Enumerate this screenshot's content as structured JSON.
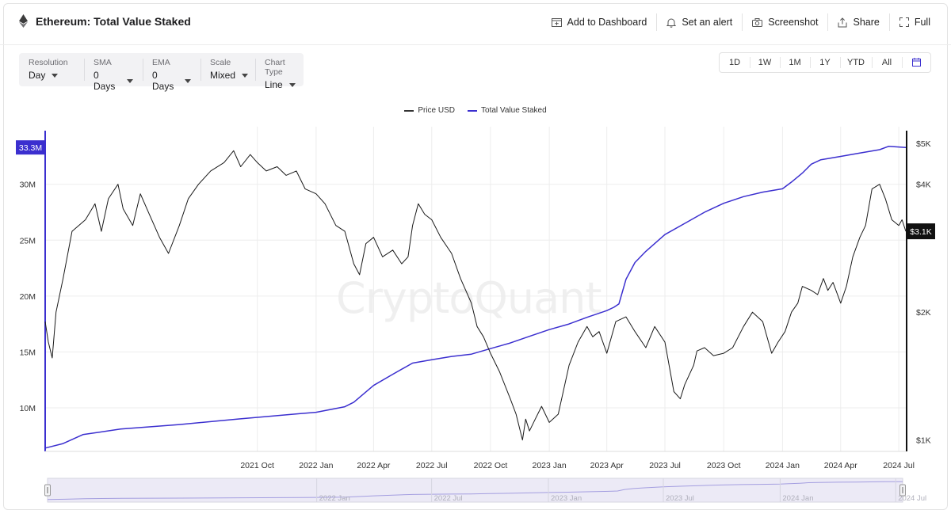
{
  "header": {
    "title": "Ethereum: Total Value Staked",
    "actions": [
      {
        "label": "Add to Dashboard",
        "icon": "dashboard-add-icon"
      },
      {
        "label": "Set an alert",
        "icon": "bell-icon"
      },
      {
        "label": "Screenshot",
        "icon": "camera-icon"
      },
      {
        "label": "Share",
        "icon": "share-icon"
      },
      {
        "label": "Full",
        "icon": "fullscreen-icon"
      }
    ]
  },
  "controls": [
    {
      "label": "Resolution",
      "value": "Day"
    },
    {
      "label": "SMA",
      "value": "0 Days"
    },
    {
      "label": "EMA",
      "value": "0 Days"
    },
    {
      "label": "Scale",
      "value": "Mixed"
    },
    {
      "label": "Chart Type",
      "value": "Line"
    }
  ],
  "ranges": [
    "1D",
    "1W",
    "1M",
    "1Y",
    "YTD",
    "All"
  ],
  "watermark": "CryptoQuant",
  "colors": {
    "accent": "#3b2fcf",
    "price": "#1a1a1a",
    "grid": "#ededed"
  },
  "chart_data": {
    "type": "line",
    "legend_position": "top-center",
    "grid": true,
    "x_range": [
      "2020-11-03",
      "2024-07-12"
    ],
    "x_ticks": [
      {
        "date": "2021-10-01",
        "label": "2021 Oct"
      },
      {
        "date": "2022-01-01",
        "label": "2022 Jan"
      },
      {
        "date": "2022-04-01",
        "label": "2022 Apr"
      },
      {
        "date": "2022-07-01",
        "label": "2022 Jul"
      },
      {
        "date": "2022-10-01",
        "label": "2022 Oct"
      },
      {
        "date": "2023-01-01",
        "label": "2023 Jan"
      },
      {
        "date": "2023-04-01",
        "label": "2023 Apr"
      },
      {
        "date": "2023-07-01",
        "label": "2023 Jul"
      },
      {
        "date": "2023-10-01",
        "label": "2023 Oct"
      },
      {
        "date": "2024-01-01",
        "label": "2024 Jan"
      },
      {
        "date": "2024-04-01",
        "label": "2024 Apr"
      },
      {
        "date": "2024-07-01",
        "label": "2024 Jul"
      }
    ],
    "left_axis": {
      "scale": "linear",
      "range": [
        6.1,
        34.8
      ],
      "unit": "M",
      "ticks": [
        {
          "value": 10,
          "label": "10M"
        },
        {
          "value": 15,
          "label": "15M"
        },
        {
          "value": 20,
          "label": "20M"
        },
        {
          "value": 25,
          "label": "25M"
        },
        {
          "value": 30,
          "label": "30M"
        }
      ]
    },
    "right_axis": {
      "scale": "log",
      "range": [
        940,
        5350
      ],
      "ticks": [
        {
          "value": 1000,
          "label": "$1K"
        },
        {
          "value": 2000,
          "label": "$2K"
        },
        {
          "value": 4000,
          "label": "$4K"
        },
        {
          "value": 5000,
          "label": "$5K"
        }
      ]
    },
    "badges": {
      "left": {
        "value": 33.3,
        "label": "33.3M"
      },
      "right": {
        "value": 3100,
        "label": "$3.1K"
      }
    },
    "series": [
      {
        "name": "Total Value Staked",
        "axis": "left",
        "color": "#3b2fcf",
        "points": [
          [
            "2020-11-03",
            6.4
          ],
          [
            "2020-12-01",
            6.8
          ],
          [
            "2021-01-01",
            7.6
          ],
          [
            "2021-03-01",
            8.1
          ],
          [
            "2021-06-01",
            8.5
          ],
          [
            "2021-09-01",
            9.0
          ],
          [
            "2022-01-01",
            9.6
          ],
          [
            "2022-02-15",
            10.1
          ],
          [
            "2022-03-01",
            10.5
          ],
          [
            "2022-04-01",
            12.0
          ],
          [
            "2022-05-01",
            13.0
          ],
          [
            "2022-06-01",
            14.0
          ],
          [
            "2022-07-01",
            14.3
          ],
          [
            "2022-08-01",
            14.6
          ],
          [
            "2022-09-01",
            14.8
          ],
          [
            "2022-10-01",
            15.3
          ],
          [
            "2022-11-01",
            15.8
          ],
          [
            "2022-12-01",
            16.4
          ],
          [
            "2023-01-01",
            17.0
          ],
          [
            "2023-02-01",
            17.5
          ],
          [
            "2023-03-01",
            18.1
          ],
          [
            "2023-04-01",
            18.7
          ],
          [
            "2023-04-12",
            19.0
          ],
          [
            "2023-04-20",
            19.3
          ],
          [
            "2023-05-01",
            21.5
          ],
          [
            "2023-05-15",
            23.0
          ],
          [
            "2023-06-01",
            24.0
          ],
          [
            "2023-07-01",
            25.5
          ],
          [
            "2023-08-01",
            26.5
          ],
          [
            "2023-09-01",
            27.5
          ],
          [
            "2023-10-01",
            28.3
          ],
          [
            "2023-11-01",
            28.9
          ],
          [
            "2023-12-01",
            29.3
          ],
          [
            "2024-01-01",
            29.6
          ],
          [
            "2024-01-15",
            30.2
          ],
          [
            "2024-02-01",
            31.0
          ],
          [
            "2024-02-15",
            31.8
          ],
          [
            "2024-03-01",
            32.2
          ],
          [
            "2024-04-01",
            32.5
          ],
          [
            "2024-05-01",
            32.8
          ],
          [
            "2024-06-01",
            33.1
          ],
          [
            "2024-06-15",
            33.4
          ],
          [
            "2024-07-12",
            33.3
          ]
        ]
      },
      {
        "name": "Price USD",
        "axis": "right",
        "color": "#1a1a1a",
        "points": [
          [
            "2020-11-03",
            1900
          ],
          [
            "2020-11-08",
            1700
          ],
          [
            "2020-11-14",
            1560
          ],
          [
            "2020-11-20",
            2000
          ],
          [
            "2020-12-01",
            2400
          ],
          [
            "2020-12-15",
            3100
          ],
          [
            "2021-01-05",
            3300
          ],
          [
            "2021-01-20",
            3600
          ],
          [
            "2021-01-30",
            3100
          ],
          [
            "2021-02-10",
            3700
          ],
          [
            "2021-02-25",
            4000
          ],
          [
            "2021-03-05",
            3500
          ],
          [
            "2021-03-20",
            3200
          ],
          [
            "2021-04-01",
            3800
          ],
          [
            "2021-04-15",
            3400
          ],
          [
            "2021-05-01",
            3000
          ],
          [
            "2021-05-15",
            2750
          ],
          [
            "2021-06-01",
            3200
          ],
          [
            "2021-06-15",
            3700
          ],
          [
            "2021-07-01",
            4000
          ],
          [
            "2021-07-20",
            4300
          ],
          [
            "2021-08-10",
            4500
          ],
          [
            "2021-08-25",
            4800
          ],
          [
            "2021-09-05",
            4400
          ],
          [
            "2021-09-20",
            4700
          ],
          [
            "2021-10-01",
            4500
          ],
          [
            "2021-10-15",
            4300
          ],
          [
            "2021-11-01",
            4400
          ],
          [
            "2021-11-15",
            4200
          ],
          [
            "2021-12-01",
            4300
          ],
          [
            "2021-12-15",
            3900
          ],
          [
            "2022-01-01",
            3800
          ],
          [
            "2022-01-15",
            3600
          ],
          [
            "2022-02-01",
            3200
          ],
          [
            "2022-02-15",
            3100
          ],
          [
            "2022-03-01",
            2600
          ],
          [
            "2022-03-10",
            2450
          ],
          [
            "2022-03-20",
            2900
          ],
          [
            "2022-04-01",
            3000
          ],
          [
            "2022-04-15",
            2700
          ],
          [
            "2022-05-01",
            2800
          ],
          [
            "2022-05-15",
            2600
          ],
          [
            "2022-05-25",
            2700
          ],
          [
            "2022-06-01",
            3200
          ],
          [
            "2022-06-10",
            3600
          ],
          [
            "2022-06-20",
            3400
          ],
          [
            "2022-07-01",
            3300
          ],
          [
            "2022-07-15",
            3000
          ],
          [
            "2022-08-01",
            2750
          ],
          [
            "2022-08-15",
            2400
          ],
          [
            "2022-09-01",
            2100
          ],
          [
            "2022-09-10",
            1850
          ],
          [
            "2022-09-20",
            1750
          ],
          [
            "2022-10-01",
            1600
          ],
          [
            "2022-10-15",
            1450
          ],
          [
            "2022-11-01",
            1250
          ],
          [
            "2022-11-10",
            1150
          ],
          [
            "2022-11-20",
            1000
          ],
          [
            "2022-11-25",
            1120
          ],
          [
            "2022-12-01",
            1050
          ],
          [
            "2022-12-10",
            1120
          ],
          [
            "2022-12-20",
            1200
          ],
          [
            "2023-01-01",
            1100
          ],
          [
            "2023-01-15",
            1150
          ],
          [
            "2023-02-01",
            1500
          ],
          [
            "2023-02-15",
            1700
          ],
          [
            "2023-03-01",
            1850
          ],
          [
            "2023-03-10",
            1750
          ],
          [
            "2023-03-20",
            1800
          ],
          [
            "2023-04-01",
            1600
          ],
          [
            "2023-04-15",
            1900
          ],
          [
            "2023-05-01",
            1950
          ],
          [
            "2023-05-15",
            1800
          ],
          [
            "2023-06-01",
            1650
          ],
          [
            "2023-06-15",
            1850
          ],
          [
            "2023-07-01",
            1700
          ],
          [
            "2023-07-15",
            1300
          ],
          [
            "2023-07-25",
            1250
          ],
          [
            "2023-08-01",
            1350
          ],
          [
            "2023-08-15",
            1500
          ],
          [
            "2023-08-20",
            1620
          ],
          [
            "2023-09-01",
            1650
          ],
          [
            "2023-09-15",
            1580
          ],
          [
            "2023-10-01",
            1600
          ],
          [
            "2023-10-15",
            1650
          ],
          [
            "2023-11-01",
            1850
          ],
          [
            "2023-11-15",
            2000
          ],
          [
            "2023-12-01",
            1900
          ],
          [
            "2023-12-15",
            1600
          ],
          [
            "2023-12-25",
            1700
          ],
          [
            "2024-01-05",
            1800
          ],
          [
            "2024-01-15",
            2000
          ],
          [
            "2024-01-25",
            2100
          ],
          [
            "2024-02-01",
            2300
          ],
          [
            "2024-02-15",
            2250
          ],
          [
            "2024-02-25",
            2200
          ],
          [
            "2024-03-05",
            2400
          ],
          [
            "2024-03-12",
            2250
          ],
          [
            "2024-03-20",
            2350
          ],
          [
            "2024-04-01",
            2100
          ],
          [
            "2024-04-10",
            2300
          ],
          [
            "2024-04-20",
            2700
          ],
          [
            "2024-05-01",
            3000
          ],
          [
            "2024-05-10",
            3200
          ],
          [
            "2024-05-20",
            3900
          ],
          [
            "2024-06-01",
            4000
          ],
          [
            "2024-06-10",
            3700
          ],
          [
            "2024-06-20",
            3300
          ],
          [
            "2024-07-01",
            3200
          ],
          [
            "2024-07-06",
            3300
          ],
          [
            "2024-07-12",
            3100
          ]
        ]
      }
    ]
  },
  "navigator": {
    "labels": [
      "2022 Jan",
      "2022 Jul",
      "2023 Jan",
      "2023 Jul",
      "2024 Jan",
      "2024 Jul"
    ],
    "label_dates": [
      "2022-01-01",
      "2022-07-01",
      "2023-01-01",
      "2023-07-01",
      "2024-01-01",
      "2024-07-01"
    ]
  }
}
